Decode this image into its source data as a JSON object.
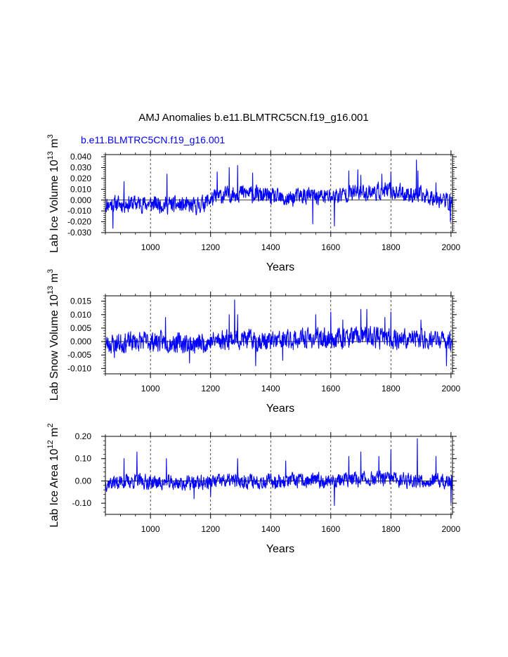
{
  "title": "AMJ Anomalies b.e11.BLMTRC5CN.f19_g16.001",
  "case_label": "b.e11.BLMTRC5CN.f19_g16.001",
  "series_color": "#0000ff",
  "chart_data": [
    {
      "type": "line",
      "name": "ice-volume",
      "ylabel": "Lab Ice Volume 10^13 m^3",
      "ylabel_main": "Lab Ice Volume 10",
      "ylabel_exp": "13",
      "ylabel_unit": "m",
      "ylabel_unit_exp": "3",
      "xlabel": "Years",
      "xlim": [
        850,
        2005
      ],
      "ylim": [
        -0.03,
        0.042
      ],
      "x_ticks": [
        1000,
        1200,
        1400,
        1600,
        1800,
        2000
      ],
      "x_tick_labels": [
        "1000",
        "1200",
        "1400",
        "1600",
        "1800",
        "2000"
      ],
      "y_ticks": [
        -0.03,
        -0.02,
        -0.01,
        0.0,
        0.01,
        0.02,
        0.03,
        0.04
      ],
      "y_tick_labels": [
        "-0.030",
        "-0.020",
        "-0.010",
        "0.000",
        "0.010",
        "0.020",
        "0.030",
        "0.040"
      ],
      "y_minor_step": 0.002,
      "grid_x": [
        1000,
        1200,
        1400,
        1600,
        1800,
        2000
      ],
      "x": [
        850,
        2005,
        1
      ],
      "anchors": [
        [
          850,
          -0.004
        ],
        [
          950,
          -0.003
        ],
        [
          1050,
          -0.004
        ],
        [
          1150,
          -0.006
        ],
        [
          1220,
          0.003
        ],
        [
          1300,
          0.007
        ],
        [
          1400,
          0.003
        ],
        [
          1450,
          0.0
        ],
        [
          1500,
          0.004
        ],
        [
          1600,
          0.003
        ],
        [
          1650,
          0.006
        ],
        [
          1700,
          0.007
        ],
        [
          1750,
          0.008
        ],
        [
          1800,
          0.008
        ],
        [
          1850,
          0.006
        ],
        [
          1900,
          0.004
        ],
        [
          1950,
          0.003
        ],
        [
          2005,
          -0.003
        ]
      ],
      "noise_amp": 0.0075,
      "seed": 11,
      "spikes": [
        [
          875,
          -0.026
        ],
        [
          912,
          0.017
        ],
        [
          1055,
          0.024
        ],
        [
          1222,
          0.026
        ],
        [
          1262,
          0.03
        ],
        [
          1290,
          0.032
        ],
        [
          1340,
          0.025
        ],
        [
          1540,
          -0.022
        ],
        [
          1612,
          -0.024
        ],
        [
          1660,
          0.027
        ],
        [
          1690,
          0.028
        ],
        [
          1700,
          0.023
        ],
        [
          1770,
          0.024
        ],
        [
          1800,
          0.026
        ],
        [
          1885,
          0.037
        ],
        [
          1890,
          0.027
        ],
        [
          1950,
          0.016
        ],
        [
          1998,
          -0.02
        ]
      ]
    },
    {
      "type": "line",
      "name": "snow-volume",
      "ylabel": "Lab Snow Volume 10^13 m^3",
      "ylabel_main": "Lab Snow Volume 10",
      "ylabel_exp": "13",
      "ylabel_unit": "m",
      "ylabel_unit_exp": "3",
      "xlabel": "Years",
      "xlim": [
        850,
        2005
      ],
      "ylim": [
        -0.012,
        0.017
      ],
      "x_ticks": [
        1000,
        1200,
        1400,
        1600,
        1800,
        2000
      ],
      "x_tick_labels": [
        "1000",
        "1200",
        "1400",
        "1600",
        "1800",
        "2000"
      ],
      "y_ticks": [
        -0.01,
        -0.005,
        0.0,
        0.005,
        0.01,
        0.015
      ],
      "y_tick_labels": [
        "-0.010",
        "-0.005",
        "0.000",
        "0.005",
        "0.010",
        "0.015"
      ],
      "y_minor_step": 0.001,
      "grid_x": [
        1000,
        1200,
        1400,
        1600,
        1800,
        2000
      ],
      "x": [
        850,
        2005,
        1
      ],
      "anchors": [
        [
          850,
          -0.001
        ],
        [
          950,
          0.0
        ],
        [
          1050,
          0.0
        ],
        [
          1150,
          -0.001
        ],
        [
          1250,
          0.001
        ],
        [
          1300,
          0.001
        ],
        [
          1400,
          0.0
        ],
        [
          1500,
          0.001
        ],
        [
          1600,
          0.001
        ],
        [
          1700,
          0.002
        ],
        [
          1800,
          0.001
        ],
        [
          1900,
          0.001
        ],
        [
          2005,
          0.0
        ]
      ],
      "noise_amp": 0.0036,
      "seed": 23,
      "spikes": [
        [
          880,
          -0.006
        ],
        [
          1050,
          0.009
        ],
        [
          1130,
          -0.008
        ],
        [
          1262,
          0.01
        ],
        [
          1280,
          0.0155
        ],
        [
          1290,
          0.01
        ],
        [
          1350,
          -0.009
        ],
        [
          1440,
          -0.007
        ],
        [
          1550,
          0.01
        ],
        [
          1600,
          0.011
        ],
        [
          1640,
          0.008
        ],
        [
          1700,
          0.012
        ],
        [
          1720,
          0.012
        ],
        [
          1780,
          0.009
        ],
        [
          1800,
          0.011
        ],
        [
          1900,
          0.008
        ],
        [
          1985,
          -0.009
        ]
      ]
    },
    {
      "type": "line",
      "name": "ice-area",
      "ylabel": "Lab Ice Area 10^12 m^2",
      "ylabel_main": "Lab Ice Area 10",
      "ylabel_exp": "12",
      "ylabel_unit": "m",
      "ylabel_unit_exp": "2",
      "xlabel": "Years",
      "xlim": [
        850,
        2005
      ],
      "ylim": [
        -0.15,
        0.2
      ],
      "x_ticks": [
        1000,
        1200,
        1400,
        1600,
        1800,
        2000
      ],
      "x_tick_labels": [
        "1000",
        "1200",
        "1400",
        "1600",
        "1800",
        "2000"
      ],
      "y_ticks": [
        -0.1,
        0.0,
        0.1,
        0.2
      ],
      "y_tick_labels": [
        "-0.10",
        "0.00",
        "0.10",
        "0.20"
      ],
      "y_minor_step": 0.02,
      "grid_x": [
        1000,
        1200,
        1400,
        1600,
        1800,
        2000
      ],
      "x": [
        850,
        2005,
        1
      ],
      "anchors": [
        [
          850,
          -0.01
        ],
        [
          950,
          0.0
        ],
        [
          1050,
          -0.01
        ],
        [
          1150,
          -0.01
        ],
        [
          1250,
          0.0
        ],
        [
          1350,
          0.0
        ],
        [
          1450,
          0.0
        ],
        [
          1550,
          0.0
        ],
        [
          1650,
          0.005
        ],
        [
          1750,
          0.01
        ],
        [
          1850,
          0.005
        ],
        [
          1950,
          0.0
        ],
        [
          2005,
          -0.01
        ]
      ],
      "noise_amp": 0.032,
      "seed": 37,
      "spikes": [
        [
          912,
          0.1
        ],
        [
          955,
          0.13
        ],
        [
          1053,
          0.1
        ],
        [
          1145,
          -0.08
        ],
        [
          1200,
          -0.07
        ],
        [
          1290,
          0.1
        ],
        [
          1450,
          0.09
        ],
        [
          1612,
          -0.11
        ],
        [
          1660,
          0.11
        ],
        [
          1700,
          0.13
        ],
        [
          1760,
          0.11
        ],
        [
          1800,
          0.14
        ],
        [
          1888,
          0.19
        ],
        [
          1950,
          0.11
        ],
        [
          2000,
          -0.1
        ]
      ]
    }
  ]
}
